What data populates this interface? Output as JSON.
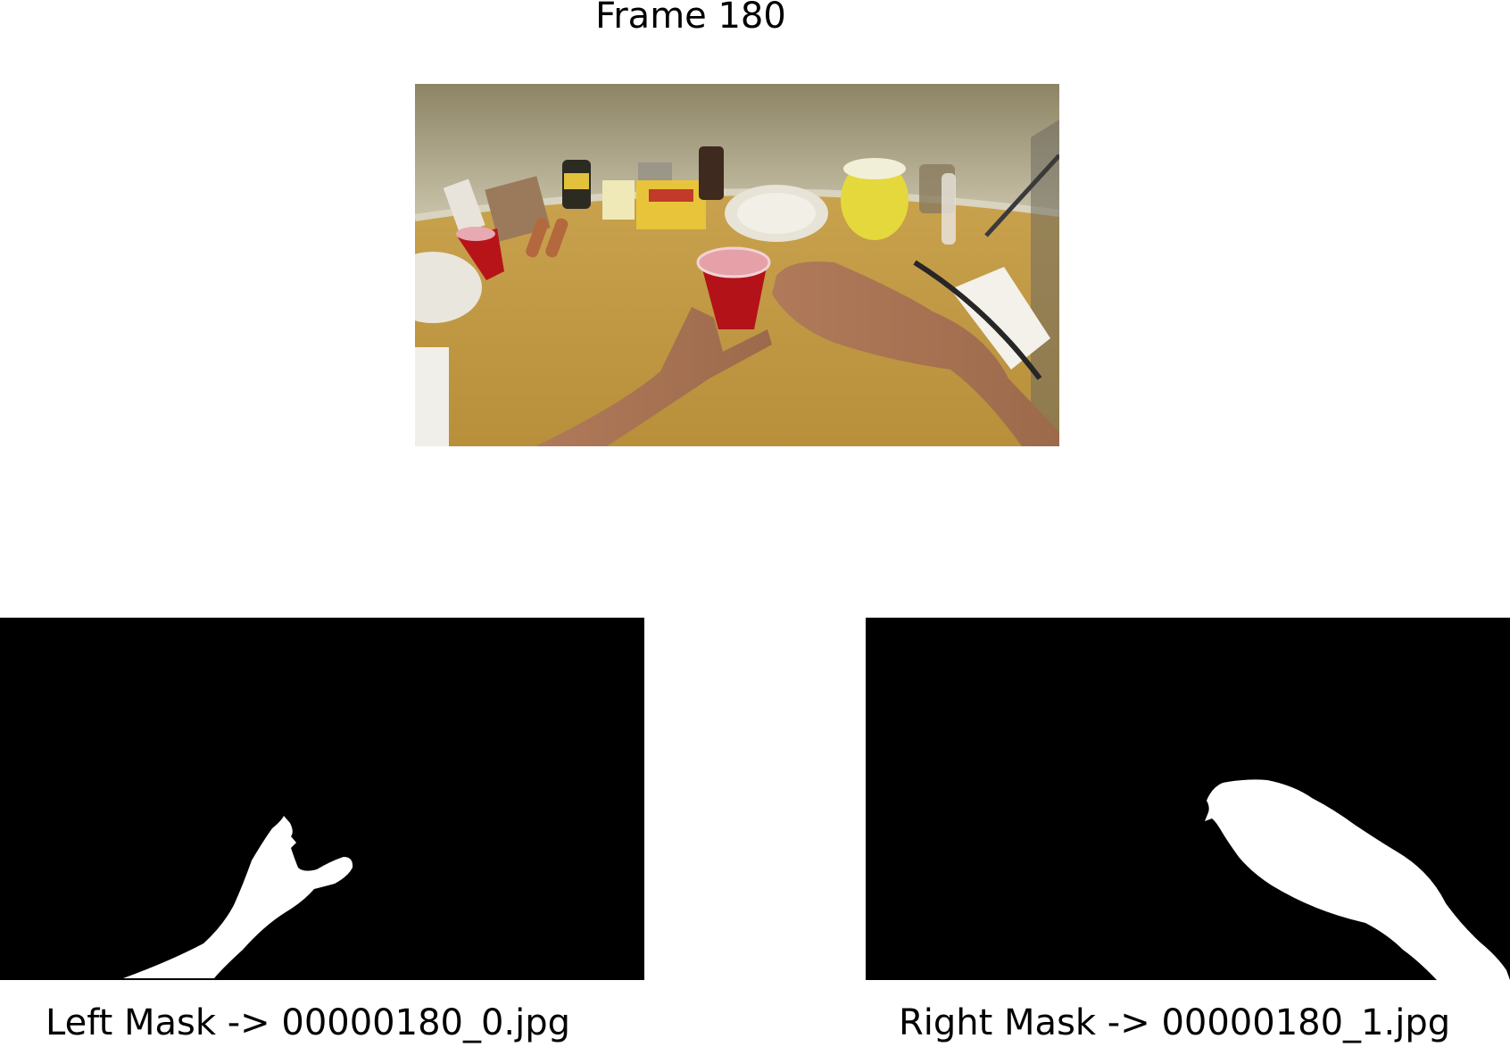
{
  "figure": {
    "title": "Frame 180"
  },
  "panels": {
    "frame": {
      "icon": "egocentric-video-frame"
    },
    "left_mask": {
      "caption": "Left Mask -> 00000180_0.jpg",
      "colors": {
        "background": "#000000",
        "mask": "#ffffff"
      }
    },
    "right_mask": {
      "caption": "Right Mask -> 00000180_1.jpg",
      "colors": {
        "background": "#000000",
        "mask": "#ffffff"
      }
    }
  }
}
